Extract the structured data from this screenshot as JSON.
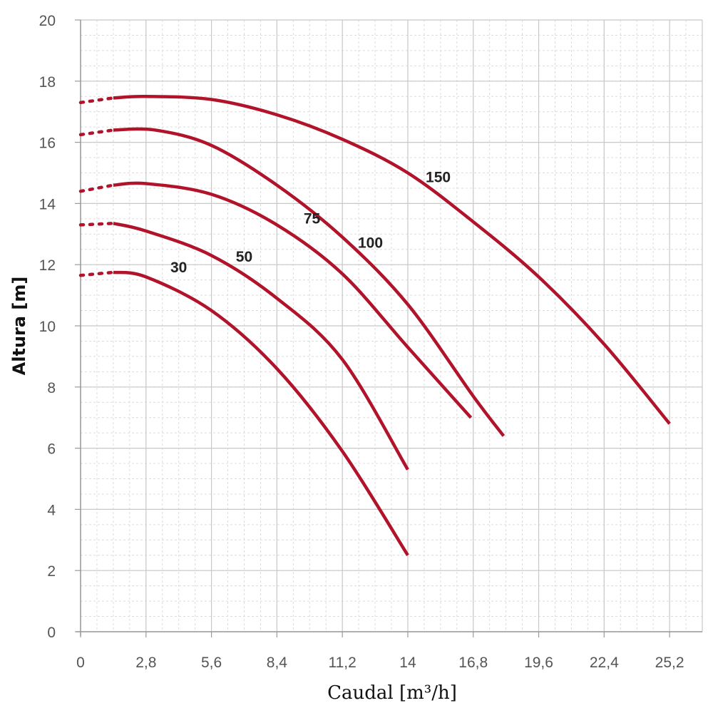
{
  "chart_data": {
    "type": "line",
    "title": "",
    "xlabel": "Caudal [m³/h]",
    "ylabel": "Altura [m]",
    "xlim": [
      0,
      26.6
    ],
    "ylim": [
      0,
      20
    ],
    "x_ticks": [
      "0",
      "2,8",
      "5,6",
      "8,4",
      "11,2",
      "14",
      "16,8",
      "19,6",
      "22,4",
      "25,2"
    ],
    "x_tick_values": [
      0,
      2.8,
      5.6,
      8.4,
      11.2,
      14,
      16.8,
      19.6,
      22.4,
      25.2
    ],
    "y_ticks": [
      "0",
      "2",
      "4",
      "6",
      "8",
      "10",
      "12",
      "14",
      "16",
      "18",
      "20"
    ],
    "y_tick_values": [
      0,
      2,
      4,
      6,
      8,
      10,
      12,
      14,
      16,
      18,
      20
    ],
    "grid": true,
    "minor_grid": true,
    "line_color": "#B0132A",
    "series": [
      {
        "name": "30",
        "dotted_start": [
          [
            0,
            11.65
          ],
          [
            1.4,
            11.75
          ]
        ],
        "points": [
          [
            1.4,
            11.75
          ],
          [
            2.8,
            11.6
          ],
          [
            5.6,
            10.5
          ],
          [
            8.4,
            8.6
          ],
          [
            11.2,
            5.9
          ],
          [
            14,
            2.5
          ]
        ]
      },
      {
        "name": "50",
        "dotted_start": [
          [
            0,
            13.3
          ],
          [
            1.4,
            13.35
          ]
        ],
        "points": [
          [
            1.4,
            13.35
          ],
          [
            2.8,
            13.1
          ],
          [
            5.6,
            12.3
          ],
          [
            8.4,
            10.9
          ],
          [
            11.2,
            8.9
          ],
          [
            14,
            5.3
          ]
        ]
      },
      {
        "name": "75",
        "dotted_start": [
          [
            0,
            14.4
          ],
          [
            1.4,
            14.6
          ]
        ],
        "points": [
          [
            1.4,
            14.6
          ],
          [
            2.8,
            14.65
          ],
          [
            5.6,
            14.3
          ],
          [
            8.4,
            13.3
          ],
          [
            11.2,
            11.7
          ],
          [
            14,
            9.3
          ],
          [
            16.7,
            7.0
          ]
        ]
      },
      {
        "name": "100",
        "dotted_start": [
          [
            0,
            16.25
          ],
          [
            1.4,
            16.4
          ]
        ],
        "points": [
          [
            1.4,
            16.4
          ],
          [
            3.2,
            16.4
          ],
          [
            5.6,
            15.9
          ],
          [
            8.4,
            14.6
          ],
          [
            11.2,
            12.9
          ],
          [
            14,
            10.7
          ],
          [
            16.8,
            7.7
          ],
          [
            18.1,
            6.4
          ]
        ]
      },
      {
        "name": "150",
        "dotted_start": [
          [
            0,
            17.3
          ],
          [
            1.4,
            17.45
          ]
        ],
        "points": [
          [
            1.4,
            17.45
          ],
          [
            2.8,
            17.5
          ],
          [
            5.6,
            17.4
          ],
          [
            8.4,
            16.9
          ],
          [
            11.2,
            16.1
          ],
          [
            14,
            15.0
          ],
          [
            16.8,
            13.4
          ],
          [
            19.6,
            11.6
          ],
          [
            22.4,
            9.4
          ],
          [
            25.2,
            6.8
          ]
        ]
      }
    ],
    "series_labels": [
      {
        "name": "30",
        "x": 4.2,
        "y": 11.75
      },
      {
        "name": "50",
        "x": 7.0,
        "y": 12.1
      },
      {
        "name": "75",
        "x": 9.9,
        "y": 13.35
      },
      {
        "name": "100",
        "x": 12.4,
        "y": 12.55
      },
      {
        "name": "150",
        "x": 15.3,
        "y": 14.7
      }
    ]
  }
}
